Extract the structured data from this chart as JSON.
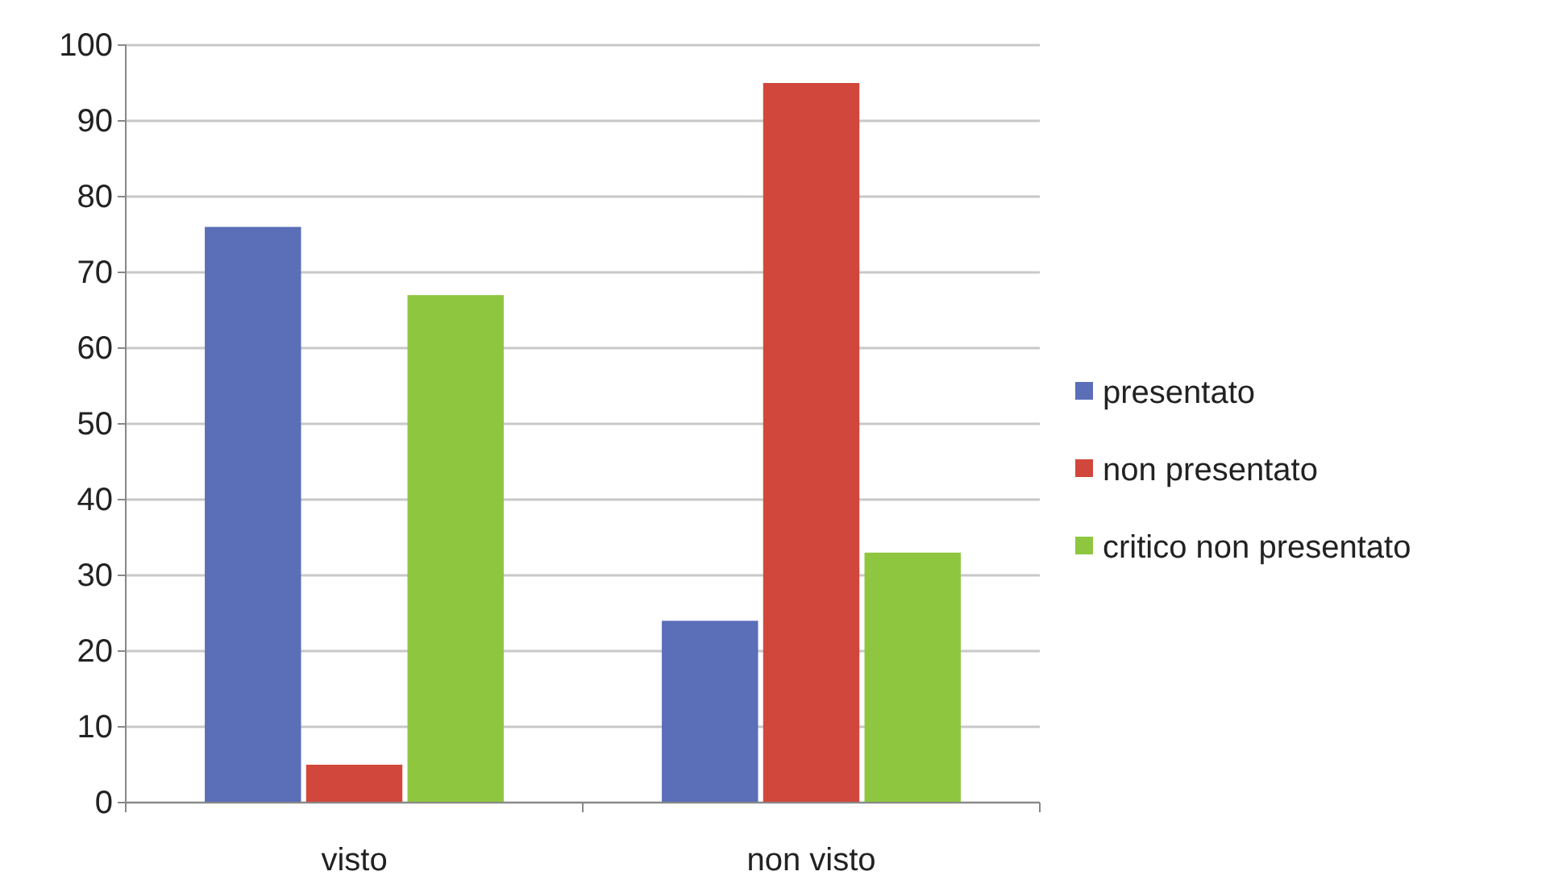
{
  "chart_data": {
    "type": "bar",
    "categories": [
      "visto",
      "non visto"
    ],
    "series": [
      {
        "name": "presentato",
        "color": "#5b6eb8",
        "values": [
          76,
          24
        ]
      },
      {
        "name": "non presentato",
        "color": "#d2473b",
        "values": [
          5,
          95
        ]
      },
      {
        "name": "critico non presentato",
        "color": "#8ec73f",
        "values": [
          67,
          33
        ]
      }
    ],
    "ylim": [
      0,
      100
    ],
    "yticks": [
      0,
      10,
      20,
      30,
      40,
      50,
      60,
      70,
      80,
      90,
      100
    ],
    "grid": "y",
    "legend": "right"
  }
}
